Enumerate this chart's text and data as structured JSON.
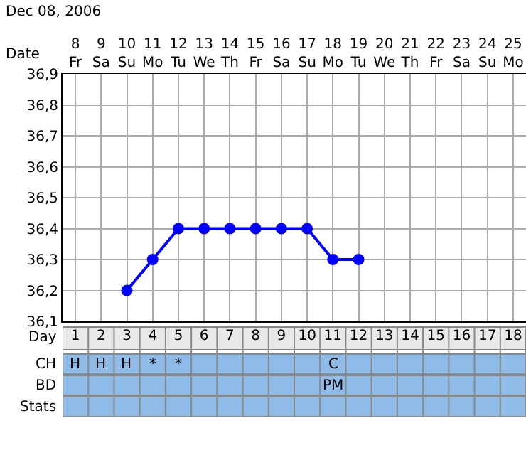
{
  "chart_data": {
    "type": "line",
    "title": "Dec 08, 2006",
    "xlabel": "Date",
    "x2label": "Day",
    "categories": [
      "8 Fr",
      "9 Sa",
      "10 Su",
      "11 Mo",
      "12 Tu",
      "13 We",
      "14 Th",
      "15 Fr",
      "16 Sa",
      "17 Su",
      "18 Mo",
      "19 Tu",
      "20 We",
      "21 Th",
      "22 Fr",
      "23 Sa",
      "24 Su",
      "25 Mo"
    ],
    "series": [
      {
        "color": "#0000ff",
        "values": [
          null,
          null,
          36.2,
          36.3,
          36.4,
          36.4,
          36.4,
          36.4,
          36.4,
          36.4,
          36.3,
          36.3,
          null,
          null,
          null,
          null,
          null,
          null
        ]
      },
      {
        "type": "other",
        "name": "CH",
        "values": [
          null,
          null,
          null,
          null,
          null,
          null,
          null,
          null,
          null,
          null,
          null,
          null,
          null,
          null,
          null,
          null,
          null,
          null
        ],
        "value_labels": [
          "H",
          "H",
          "H",
          "*",
          "*",
          null,
          null,
          null,
          null,
          null,
          "C",
          null,
          null,
          null,
          null,
          null,
          null,
          null
        ]
      },
      {
        "type": "other",
        "name": "BD",
        "values": [
          null,
          null,
          null,
          null,
          null,
          null,
          null,
          null,
          null,
          null,
          null,
          null,
          null,
          null,
          null,
          null,
          null,
          null
        ],
        "value_labels": [
          null,
          null,
          null,
          null,
          null,
          null,
          null,
          null,
          null,
          null,
          "PM",
          null,
          null,
          null,
          null,
          null,
          null,
          null
        ]
      }
    ],
    "ylim": [
      36.1,
      36.9
    ],
    "yticks": [
      {
        "value": 36.1,
        "label": "36,1"
      },
      {
        "value": 36.2,
        "label": "36,2"
      },
      {
        "value": 36.3,
        "label": "36,3"
      },
      {
        "value": 36.4,
        "label": "36,4"
      },
      {
        "value": 36.5,
        "label": "36,5"
      },
      {
        "value": 36.6,
        "label": "36,6"
      },
      {
        "value": 36.7,
        "label": "36,7"
      },
      {
        "value": 36.8,
        "label": "36,8"
      },
      {
        "value": 36.9,
        "label": "36,9"
      }
    ],
    "x2lim": [
      0.5,
      18.5
    ],
    "x2ticks": [
      1,
      2,
      3,
      4,
      5,
      6,
      7,
      8,
      9,
      10,
      11,
      12,
      13,
      14,
      15,
      16,
      17,
      18
    ],
    "grid": true,
    "marker": "circle",
    "line_style": "solid",
    "annotations": [
      "Stats"
    ]
  }
}
